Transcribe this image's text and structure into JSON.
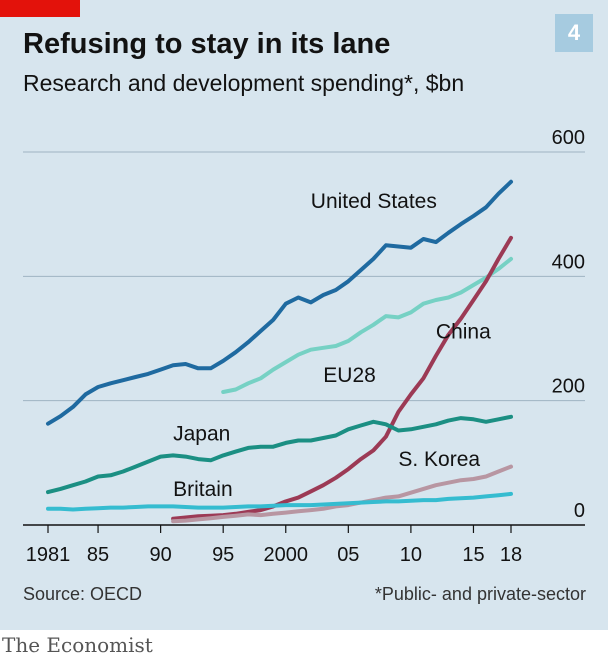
{
  "header": {
    "title": "Refusing to stay in its lane",
    "subtitle": "Research and development spending*, $bn",
    "badge": "4"
  },
  "footer": {
    "source": "Source: OECD",
    "footnote": "*Public- and private-sector",
    "brand": "The Economist"
  },
  "colors": {
    "background": "#d7e5ee",
    "accent_red": "#e3120b",
    "badge": "#a6cbe0"
  },
  "chart_data": {
    "type": "line",
    "title": "Refusing to stay in its lane",
    "subtitle": "Research and development spending*, $bn",
    "ylim": [
      0,
      600
    ],
    "y_ticks": [
      0,
      200,
      400,
      600
    ],
    "y_tick_labels": [
      "0",
      "200",
      "400",
      "600"
    ],
    "y_axis_position": "right",
    "x_range": [
      1981,
      2018
    ],
    "x_ticks": [
      1981,
      1985,
      1990,
      1995,
      2000,
      2005,
      2010,
      2015,
      2018
    ],
    "x_tick_labels": [
      "1981",
      "85",
      "90",
      "95",
      "2000",
      "05",
      "10",
      "15",
      "18"
    ],
    "grid": true,
    "series": [
      {
        "name": "United States",
        "color": "#1f6aa0",
        "x": [
          1981,
          1982,
          1983,
          1984,
          1985,
          1986,
          1987,
          1988,
          1989,
          1990,
          1991,
          1992,
          1993,
          1994,
          1995,
          1996,
          1997,
          1998,
          1999,
          2000,
          2001,
          2002,
          2003,
          2004,
          2005,
          2006,
          2007,
          2008,
          2009,
          2010,
          2011,
          2012,
          2013,
          2014,
          2015,
          2016,
          2017,
          2018
        ],
        "y": [
          163,
          175,
          190,
          210,
          222,
          228,
          233,
          238,
          243,
          250,
          257,
          259,
          252,
          252,
          264,
          278,
          294,
          312,
          330,
          356,
          366,
          358,
          370,
          378,
          392,
          410,
          428,
          450,
          448,
          446,
          460,
          455,
          470,
          484,
          497,
          511,
          533,
          552
        ]
      },
      {
        "name": "EU28",
        "color": "#76d1c4",
        "x": [
          1995,
          1996,
          1997,
          1998,
          1999,
          2000,
          2001,
          2002,
          2003,
          2004,
          2005,
          2006,
          2007,
          2008,
          2009,
          2010,
          2011,
          2012,
          2013,
          2014,
          2015,
          2016,
          2017,
          2018
        ],
        "y": [
          214,
          218,
          228,
          236,
          250,
          262,
          274,
          282,
          285,
          288,
          296,
          310,
          322,
          336,
          334,
          342,
          356,
          362,
          366,
          374,
          386,
          398,
          412,
          428
        ]
      },
      {
        "name": "China",
        "color": "#9c3a55",
        "x": [
          1991,
          1992,
          1993,
          1994,
          1995,
          1996,
          1997,
          1998,
          1999,
          2000,
          2001,
          2002,
          2003,
          2004,
          2005,
          2006,
          2007,
          2008,
          2009,
          2010,
          2011,
          2012,
          2013,
          2014,
          2015,
          2016,
          2017,
          2018
        ],
        "y": [
          10,
          12,
          14,
          15,
          16,
          18,
          21,
          24,
          30,
          38,
          44,
          54,
          64,
          76,
          90,
          106,
          120,
          142,
          182,
          210,
          236,
          272,
          306,
          332,
          362,
          392,
          428,
          462
        ]
      },
      {
        "name": "Japan",
        "color": "#1b8f83",
        "x": [
          1981,
          1982,
          1983,
          1984,
          1985,
          1986,
          1987,
          1988,
          1989,
          1990,
          1991,
          1992,
          1993,
          1994,
          1995,
          1996,
          1997,
          1998,
          1999,
          2000,
          2001,
          2002,
          2003,
          2004,
          2005,
          2006,
          2007,
          2008,
          2009,
          2010,
          2011,
          2012,
          2013,
          2014,
          2015,
          2016,
          2017,
          2018
        ],
        "y": [
          53,
          58,
          64,
          70,
          78,
          80,
          86,
          94,
          102,
          110,
          112,
          110,
          106,
          104,
          112,
          118,
          124,
          126,
          126,
          132,
          136,
          136,
          140,
          144,
          154,
          160,
          166,
          162,
          152,
          154,
          158,
          162,
          168,
          172,
          170,
          166,
          170,
          174
        ]
      },
      {
        "name": "S. Korea",
        "color": "#b896a2",
        "x": [
          1991,
          1992,
          1993,
          1994,
          1995,
          1996,
          1997,
          1998,
          1999,
          2000,
          2001,
          2002,
          2003,
          2004,
          2005,
          2006,
          2007,
          2008,
          2009,
          2010,
          2011,
          2012,
          2013,
          2014,
          2015,
          2016,
          2017,
          2018
        ],
        "y": [
          6,
          7,
          9,
          11,
          13,
          15,
          17,
          16,
          18,
          20,
          22,
          24,
          26,
          30,
          32,
          36,
          40,
          44,
          46,
          52,
          58,
          64,
          68,
          72,
          74,
          78,
          86,
          94
        ]
      },
      {
        "name": "Britain",
        "color": "#35bcd0",
        "x": [
          1981,
          1982,
          1983,
          1984,
          1985,
          1986,
          1987,
          1988,
          1989,
          1990,
          1991,
          1992,
          1993,
          1994,
          1995,
          1996,
          1997,
          1998,
          1999,
          2000,
          2001,
          2002,
          2003,
          2004,
          2005,
          2006,
          2007,
          2008,
          2009,
          2010,
          2011,
          2012,
          2013,
          2014,
          2015,
          2016,
          2017,
          2018
        ],
        "y": [
          26,
          26,
          25,
          26,
          27,
          28,
          28,
          29,
          30,
          30,
          30,
          29,
          28,
          28,
          28,
          29,
          30,
          30,
          31,
          32,
          32,
          32,
          33,
          34,
          35,
          36,
          37,
          38,
          38,
          39,
          40,
          40,
          42,
          43,
          44,
          46,
          48,
          50
        ]
      }
    ]
  }
}
